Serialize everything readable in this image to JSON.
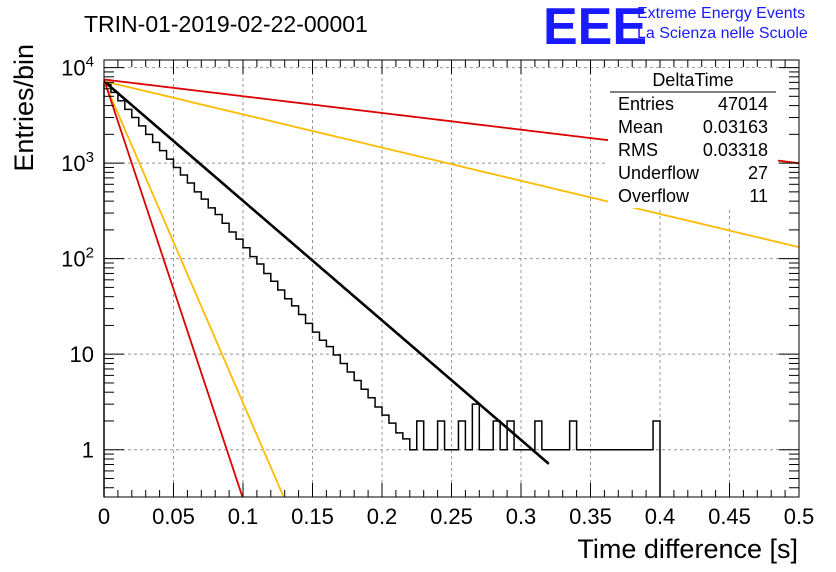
{
  "chart_data": {
    "type": "histogram",
    "title": "TRIN-01-2019-02-22-00001",
    "xlabel": "Time difference [s]",
    "ylabel": "Entries/bin",
    "xlim": [
      0,
      0.5
    ],
    "ylim": [
      0.32,
      12000
    ],
    "y_scale": "log",
    "grid": true,
    "x_ticks": [
      "0",
      "0.05",
      "0.1",
      "0.15",
      "0.2",
      "0.25",
      "0.3",
      "0.35",
      "0.4",
      "0.45",
      "0.5"
    ],
    "y_ticks": [
      "1",
      "10",
      "10^2",
      "10^3",
      "10^4"
    ],
    "logo": {
      "mark": "EEE",
      "line1": "Extreme Energy Events",
      "line2": "La Scienza nelle Scuole"
    },
    "stats_box": {
      "name": "DeltaTime",
      "rows": [
        {
          "label": "Entries",
          "value": "47014"
        },
        {
          "label": "Mean",
          "value": "0.03163"
        },
        {
          "label": "RMS",
          "value": "0.03318"
        },
        {
          "label": "Underflow",
          "value": "27"
        },
        {
          "label": "Overflow",
          "value": "11"
        }
      ]
    },
    "histogram": {
      "bin_width": 0.005,
      "counts": [
        6800,
        5500,
        4500,
        3650,
        3000,
        2450,
        2000,
        1650,
        1350,
        1100,
        900,
        750,
        620,
        500,
        420,
        340,
        290,
        235,
        190,
        160,
        130,
        105,
        88,
        70,
        58,
        47,
        38,
        32,
        26,
        21,
        17,
        14,
        12,
        9.8,
        8,
        6.5,
        5.3,
        4.3,
        3.5,
        2.8,
        2.3,
        1.9,
        1.5,
        1.3,
        1,
        2,
        1,
        1,
        2,
        1,
        1,
        2,
        1,
        3,
        1,
        1,
        2,
        1,
        2,
        1,
        1,
        1,
        2,
        1,
        1,
        1,
        1,
        2,
        1,
        1,
        1,
        1,
        1,
        1,
        1,
        1,
        1,
        1,
        1,
        2
      ]
    },
    "fit_lines": [
      {
        "name": "fit",
        "color": "#000000",
        "y0": 7200,
        "tau": 0.0347,
        "x_end": 0.32
      },
      {
        "name": "upper-red",
        "color": "#dd0000",
        "y0": 7500,
        "tau": 0.248,
        "x_end": 0.5
      },
      {
        "name": "upper-orange",
        "color": "#ffbb00",
        "y0": 7200,
        "tau": 0.125,
        "x_end": 0.5
      },
      {
        "name": "lower-orange",
        "color": "#ffbb00",
        "y0": 7200,
        "tau": 0.0129,
        "x_end": 0.13
      },
      {
        "name": "lower-red",
        "color": "#dd0000",
        "y0": 7500,
        "tau": 0.0099,
        "x_end": 0.102
      }
    ]
  }
}
